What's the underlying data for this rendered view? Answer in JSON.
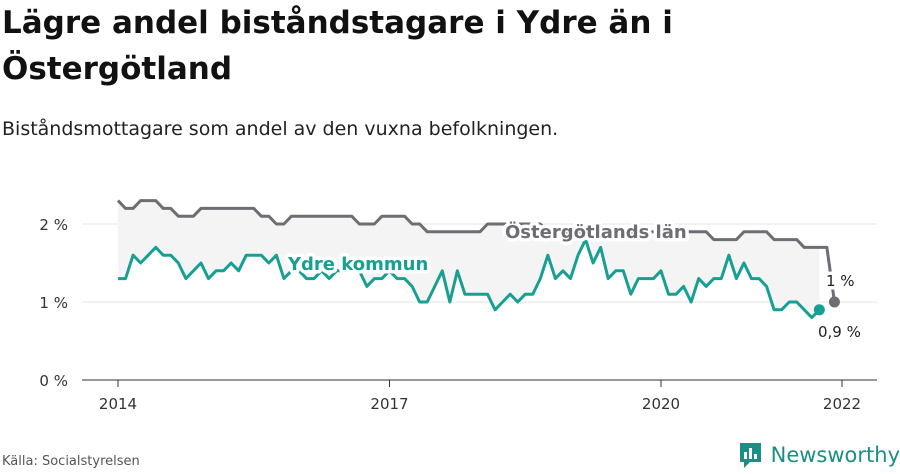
{
  "title": "Lägre andel biståndstagare i Ydre än i Östergötland",
  "subtitle": "Biståndsmottagare som andel av den vuxna befolkningen.",
  "source": "Källa: Socialstyrelsen",
  "brand": "Newsworthy",
  "colors": {
    "county": "#6d6d73",
    "municipality": "#17a092",
    "band": "#f4f4f4",
    "grid": "#e3e3e3",
    "brand": "#1b8f86"
  },
  "chart_data": {
    "type": "line",
    "xlim": [
      2014,
      2022.5
    ],
    "ylim": [
      0,
      2.35
    ],
    "y_ticks": [
      {
        "value": 0,
        "label": "0 %"
      },
      {
        "value": 1,
        "label": "1 %"
      },
      {
        "value": 2,
        "label": "2 %"
      }
    ],
    "x_ticks": [
      {
        "value": 2014,
        "label": "2014"
      },
      {
        "value": 2017,
        "label": "2017"
      },
      {
        "value": 2020,
        "label": "2020"
      },
      {
        "value": 2022,
        "label": "2022"
      }
    ],
    "grid": true,
    "series": [
      {
        "name": "Östergötlands län",
        "x_start": 2014,
        "step": 0.08333,
        "values": [
          2.3,
          2.2,
          2.2,
          2.3,
          2.3,
          2.3,
          2.2,
          2.2,
          2.1,
          2.1,
          2.1,
          2.2,
          2.2,
          2.2,
          2.2,
          2.2,
          2.2,
          2.2,
          2.2,
          2.1,
          2.1,
          2.0,
          2.0,
          2.1,
          2.1,
          2.1,
          2.1,
          2.1,
          2.1,
          2.1,
          2.1,
          2.1,
          2.0,
          2.0,
          2.0,
          2.1,
          2.1,
          2.1,
          2.1,
          2.0,
          2.0,
          1.9,
          1.9,
          1.9,
          1.9,
          1.9,
          1.9,
          1.9,
          1.9,
          2.0,
          2.0,
          2.0,
          2.0,
          2.0,
          2.0,
          2.0,
          2.0,
          1.9,
          1.9,
          1.9,
          1.9,
          1.9,
          1.9,
          1.9,
          1.9,
          1.9,
          1.9,
          1.9,
          1.9,
          1.9,
          1.9,
          1.9,
          1.9,
          1.9,
          1.9,
          1.9,
          1.9,
          1.9,
          1.9,
          1.8,
          1.8,
          1.8,
          1.8,
          1.9,
          1.9,
          1.9,
          1.9,
          1.8,
          1.8,
          1.8,
          1.8,
          1.7,
          1.7,
          1.7,
          1.7,
          1.0
        ],
        "end_label": "1 %"
      },
      {
        "name": "Ydre kommun",
        "x_start": 2014,
        "step": 0.08333,
        "values": [
          1.3,
          1.3,
          1.6,
          1.5,
          1.6,
          1.7,
          1.6,
          1.6,
          1.5,
          1.3,
          1.4,
          1.5,
          1.3,
          1.4,
          1.4,
          1.5,
          1.4,
          1.6,
          1.6,
          1.6,
          1.5,
          1.6,
          1.3,
          1.4,
          1.4,
          1.3,
          1.3,
          1.4,
          1.3,
          1.4,
          1.4,
          1.4,
          1.4,
          1.2,
          1.3,
          1.3,
          1.4,
          1.3,
          1.3,
          1.2,
          1.0,
          1.0,
          1.2,
          1.4,
          1.0,
          1.4,
          1.1,
          1.1,
          1.1,
          1.1,
          0.9,
          1.0,
          1.1,
          1.0,
          1.1,
          1.1,
          1.3,
          1.6,
          1.3,
          1.4,
          1.3,
          1.6,
          1.8,
          1.5,
          1.7,
          1.3,
          1.4,
          1.4,
          1.1,
          1.3,
          1.3,
          1.3,
          1.4,
          1.1,
          1.1,
          1.2,
          1.0,
          1.3,
          1.2,
          1.3,
          1.3,
          1.6,
          1.3,
          1.5,
          1.3,
          1.3,
          1.2,
          0.9,
          0.9,
          1.0,
          1.0,
          0.9,
          0.8,
          0.9
        ],
        "end_label": "0,9 %"
      }
    ]
  }
}
